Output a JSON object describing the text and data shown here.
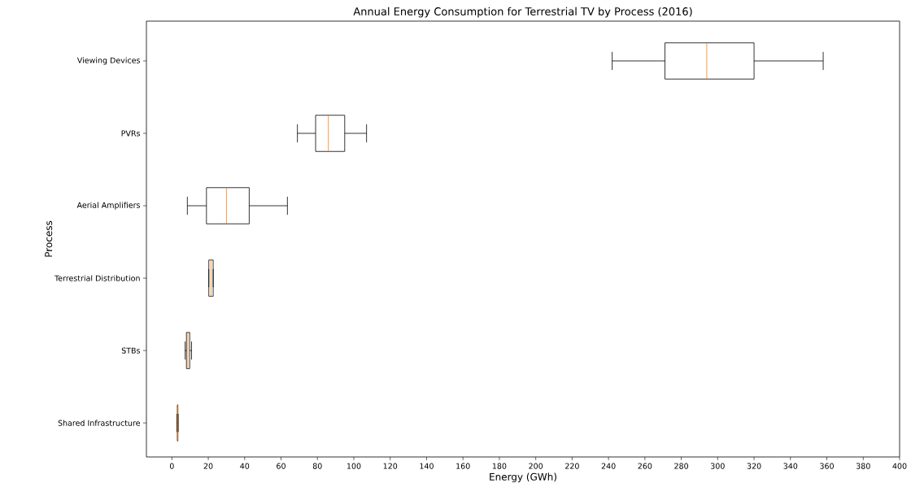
{
  "chart_data": {
    "type": "box",
    "orientation": "horizontal",
    "title": "Annual Energy Consumption for Terrestrial TV by Process (2016)",
    "xlabel": "Energy (GWh)",
    "ylabel": "Process",
    "categories": [
      "Viewing Devices",
      "PVRs",
      "Aerial Amplifiers",
      "Terrestrial Distribution",
      "STBs",
      "Shared Infrastructure"
    ],
    "boxes": [
      {
        "low": 242,
        "q1": 271,
        "median": 294,
        "q3": 320,
        "high": 358
      },
      {
        "low": 69,
        "q1": 79,
        "median": 86,
        "q3": 95,
        "high": 107
      },
      {
        "low": 8.5,
        "q1": 19,
        "median": 30,
        "q3": 42.5,
        "high": 63.5
      },
      {
        "low": 20.3,
        "q1": 20.3,
        "median": 21.5,
        "q3": 22.7,
        "high": 22.7
      },
      {
        "low": 7.3,
        "q1": 8,
        "median": 8.8,
        "q3": 9.8,
        "high": 10.8
      },
      {
        "low": 2.8,
        "q1": 3,
        "median": 3.2,
        "q3": 3.3,
        "high": 3.5
      }
    ],
    "xlim": [
      -14,
      400
    ],
    "xticks": [
      0,
      20,
      40,
      60,
      80,
      100,
      120,
      140,
      160,
      180,
      200,
      220,
      240,
      260,
      280,
      300,
      320,
      340,
      360,
      380,
      400
    ],
    "grid": false
  }
}
